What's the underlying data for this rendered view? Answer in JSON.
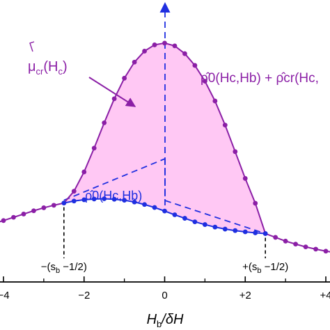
{
  "chart_data": {
    "type": "line",
    "xlabel": {
      "main": "H",
      "sub": "b",
      "rest": "/δH"
    },
    "xlim": [
      -4.3,
      4.3
    ],
    "ylim": [
      0,
      1
    ],
    "xticks": [
      {
        "value": -4,
        "label": "−4"
      },
      {
        "value": -2,
        "label": "−2"
      },
      {
        "value": 0,
        "label": "0"
      },
      {
        "value": 2,
        "label": "+2"
      },
      {
        "value": 4,
        "label": "+4"
      }
    ],
    "colors": {
      "purple": "#8b1fa6",
      "blue": "#1f2fe0",
      "fill": "#ffc8f4",
      "axis": "#000000"
    },
    "series": [
      {
        "name": "ρ̂0(Hc,Hb) + ρ̂cr(Hc, …)",
        "color": "#8b1fa6",
        "x": [
          -4.25,
          -4.0,
          -3.75,
          -3.5,
          -3.25,
          -3.0,
          -2.75,
          -2.5,
          -2.25,
          -2.0,
          -1.75,
          -1.5,
          -1.25,
          -1.0,
          -0.75,
          -0.5,
          -0.25,
          0.0,
          0.25,
          0.5,
          0.75,
          1.0,
          1.25,
          1.5,
          1.75,
          2.0,
          2.25,
          2.5,
          2.75,
          3.0,
          3.25,
          3.5,
          3.75,
          4.0,
          4.25
        ],
        "y": [
          0.233,
          0.245,
          0.258,
          0.271,
          0.284,
          0.296,
          0.306,
          0.315,
          0.362,
          0.439,
          0.534,
          0.635,
          0.731,
          0.813,
          0.877,
          0.921,
          0.946,
          0.953,
          0.942,
          0.911,
          0.864,
          0.801,
          0.722,
          0.626,
          0.52,
          0.413,
          0.314,
          0.193,
          0.178,
          0.163,
          0.151,
          0.14,
          0.131,
          0.123,
          0.117
        ]
      },
      {
        "name": "ρ̂0(Hc,Hb)",
        "color": "#1f2fe0",
        "x": [
          -2.5,
          -2.25,
          -2.0,
          -1.75,
          -1.5,
          -1.25,
          -1.0,
          -0.75,
          -0.5,
          -0.25,
          0.0,
          0.25,
          0.5,
          0.75,
          1.0,
          1.25,
          1.5,
          1.75,
          2.0,
          2.25,
          2.5
        ],
        "y": [
          0.315,
          0.323,
          0.328,
          0.331,
          0.332,
          0.33,
          0.326,
          0.319,
          0.309,
          0.297,
          0.283,
          0.268,
          0.254,
          0.24,
          0.229,
          0.219,
          0.211,
          0.205,
          0.2,
          0.196,
          0.193
        ]
      }
    ],
    "markers": [
      {
        "x": -2.5,
        "label": "−(s",
        "sub": "b",
        "tail": " −1/2)"
      },
      {
        "x": 2.5,
        "label": "+(s",
        "sub": "b",
        "tail": " −1/2)"
      }
    ],
    "annotations": {
      "mu_label": {
        "hat": "μ",
        "sub": "cr",
        "arg": "(H",
        "argsub": "c",
        "close": ")"
      },
      "rho_sum_label": "ρ̂0(Hc,Hb) + ρ̂cr(Hc,",
      "rho0_label": "ρ̂0(Hc,Hb)"
    }
  }
}
